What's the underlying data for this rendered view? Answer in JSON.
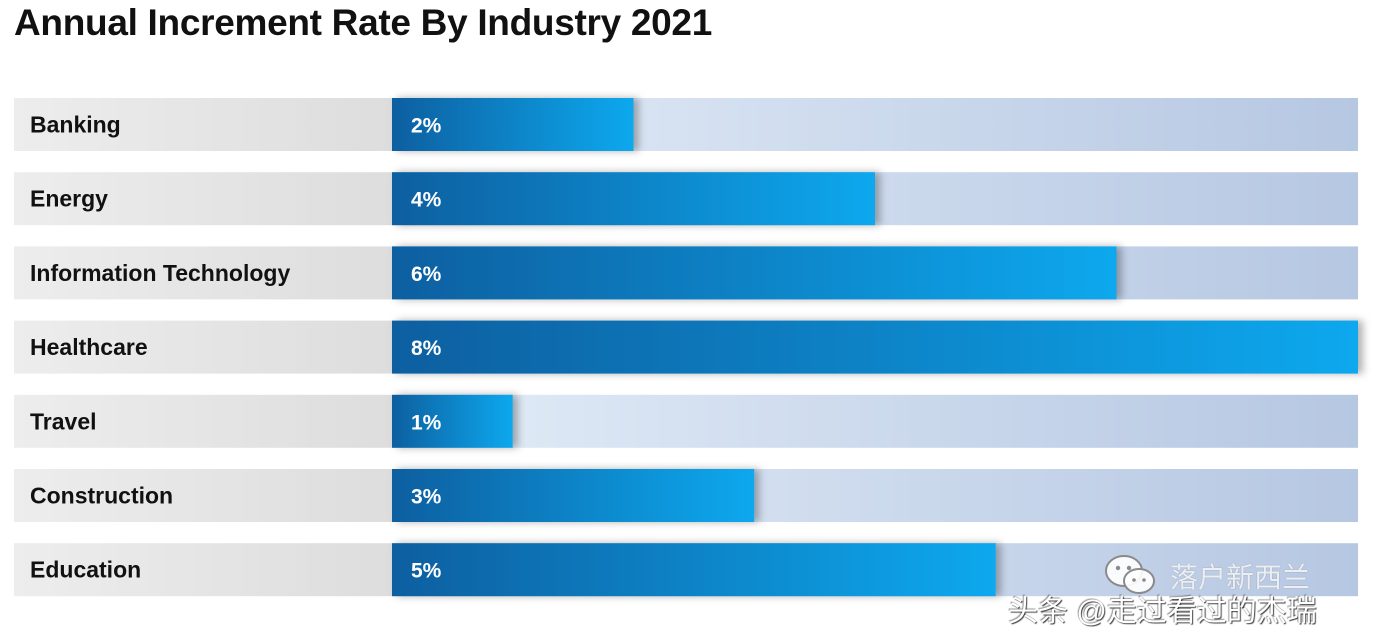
{
  "chart_data": {
    "type": "bar",
    "orientation": "horizontal",
    "title": "Annual Increment Rate By Industry 2021",
    "categories": [
      "Banking",
      "Energy",
      "Information Technology",
      "Healthcare",
      "Travel",
      "Construction",
      "Education"
    ],
    "values": [
      2,
      4,
      6,
      8,
      1,
      3,
      5
    ],
    "value_labels": [
      "2%",
      "4%",
      "6%",
      "8%",
      "1%",
      "3%",
      "5%"
    ],
    "unit": "%",
    "xlim": [
      0,
      8
    ],
    "xlabel": "",
    "ylabel": "",
    "grid": false,
    "legend": "none"
  },
  "colors": {
    "bar_dark": "#0a5fa0",
    "bar_light": "#0fa8ee",
    "track_light": "#e3edf8",
    "track_dark": "#b6c7e2",
    "label_bg_light": "#ededed",
    "label_bg_dark": "#dddddd"
  },
  "watermark": {
    "account": "落户新西兰",
    "author": "头条 @走过看过的杰瑞",
    "icon": "wechat-icon"
  }
}
